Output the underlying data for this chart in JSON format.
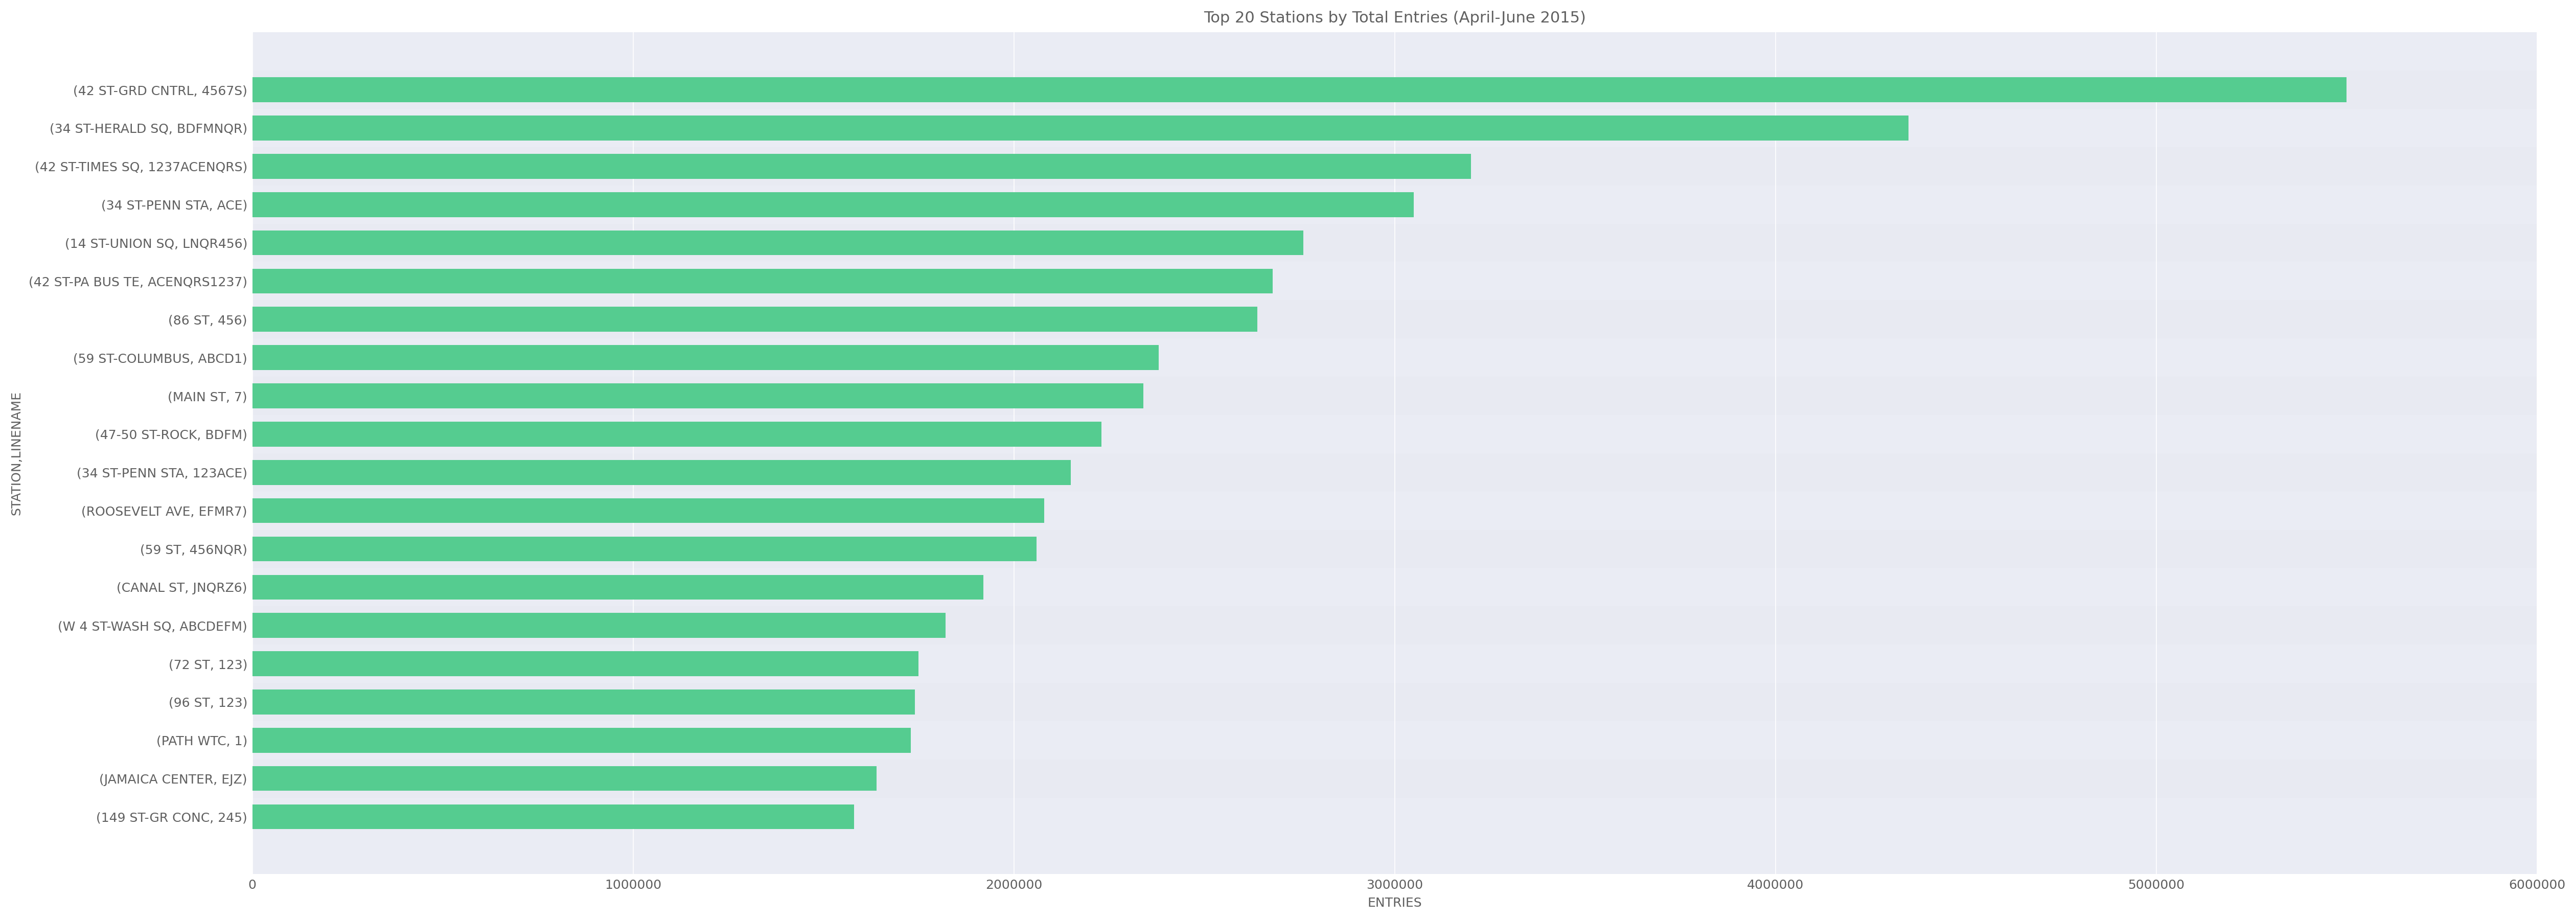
{
  "title": "Top 20 Stations by Total Entries (April-June 2015)",
  "xlabel": "ENTRIES",
  "ylabel": "STATION,LINENAME",
  "bar_color": "#55cc90",
  "background_color": "#eaecf4",
  "plot_bg_color": "#eaecf4",
  "fig_bg_color": "#ffffff",
  "categories": [
    "(42 ST-GRD CNTRL, 4567S)",
    "(34 ST-HERALD SQ, BDFMNQR)",
    "(42 ST-TIMES SQ, 1237ACENQRS)",
    "(34 ST-PENN STA, ACE)",
    "(14 ST-UNION SQ, LNQR456)",
    "(42 ST-PA BUS TE, ACENQRS1237)",
    "(86 ST, 456)",
    "(59 ST-COLUMBUS, ABCD1)",
    "(MAIN ST, 7)",
    "(47-50 ST-ROCK, BDFM)",
    "(34 ST-PENN STA, 123ACE)",
    "(ROOSEVELT AVE, EFMR7)",
    "(59 ST, 456NQR)",
    "(CANAL ST, JNQRZ6)",
    "(W 4 ST-WASH SQ, ABCDEFM)",
    "(72 ST, 123)",
    "(96 ST, 123)",
    "(PATH WTC, 1)",
    "(JAMAICA CENTER, EJZ)",
    "(149 ST-GR CONC, 245)"
  ],
  "values": [
    5500000,
    4350000,
    3200000,
    3050000,
    2760000,
    2680000,
    2640000,
    2380000,
    2340000,
    2230000,
    2150000,
    2080000,
    2060000,
    1920000,
    1820000,
    1750000,
    1740000,
    1730000,
    1640000,
    1580000
  ],
  "xlim": [
    0,
    6000000
  ],
  "xticks": [
    0,
    1000000,
    2000000,
    3000000,
    4000000,
    5000000,
    6000000
  ],
  "title_fontsize": 22,
  "label_fontsize": 18,
  "tick_fontsize": 18,
  "ytick_fontsize": 18,
  "text_color": "#606060",
  "row_color_even": "#e8eaf2",
  "row_color_odd": "#eaecf4",
  "grid_color": "#ffffff"
}
